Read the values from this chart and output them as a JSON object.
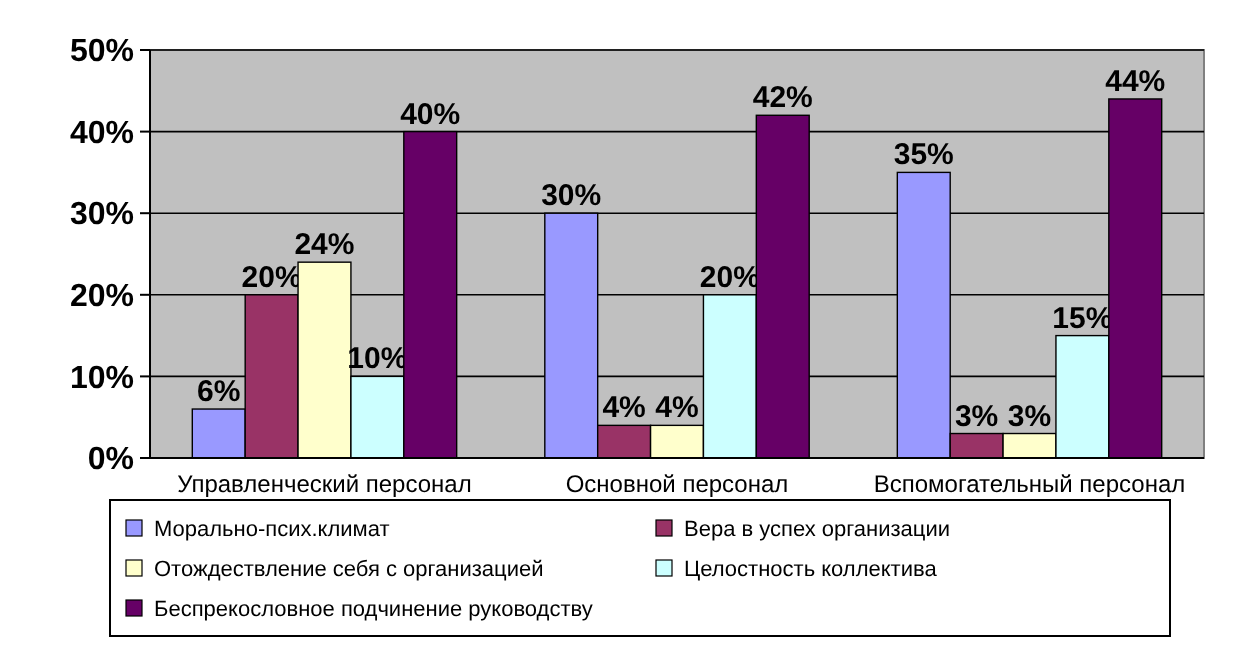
{
  "chart_data": {
    "type": "bar",
    "categories": [
      "Управленческий персонал",
      "Основной персонал",
      "Вспомогательный персонал"
    ],
    "series": [
      {
        "name": "Морально-псих.климат",
        "color": "#9999ff",
        "values": [
          6,
          30,
          35
        ],
        "value_labels": [
          "6%",
          "30%",
          "35%"
        ]
      },
      {
        "name": "Вера в успех организации",
        "color": "#993366",
        "values": [
          20,
          4,
          3
        ],
        "value_labels": [
          "20%",
          "4%",
          "3%"
        ]
      },
      {
        "name": "Отождествление себя с организацией",
        "color": "#ffffcc",
        "values": [
          24,
          4,
          3
        ],
        "value_labels": [
          "24%",
          "4%",
          "3%"
        ]
      },
      {
        "name": "Целостность коллектива",
        "color": "#ccffff",
        "values": [
          10,
          20,
          15
        ],
        "value_labels": [
          "10%",
          "20%",
          "15%"
        ]
      },
      {
        "name": "Беспрекословное подчинение руководству",
        "color": "#660066",
        "values": [
          40,
          42,
          44
        ],
        "value_labels": [
          "40%",
          "42%",
          "44%"
        ]
      }
    ],
    "ylim": [
      0,
      50
    ],
    "yticks": [
      {
        "value": 0,
        "label": "0%"
      },
      {
        "value": 10,
        "label": "10%"
      },
      {
        "value": 20,
        "label": "20%"
      },
      {
        "value": 30,
        "label": "30%"
      },
      {
        "value": 40,
        "label": "40%"
      },
      {
        "value": 50,
        "label": "50%"
      }
    ],
    "grid": "y",
    "legend": "bottom"
  }
}
